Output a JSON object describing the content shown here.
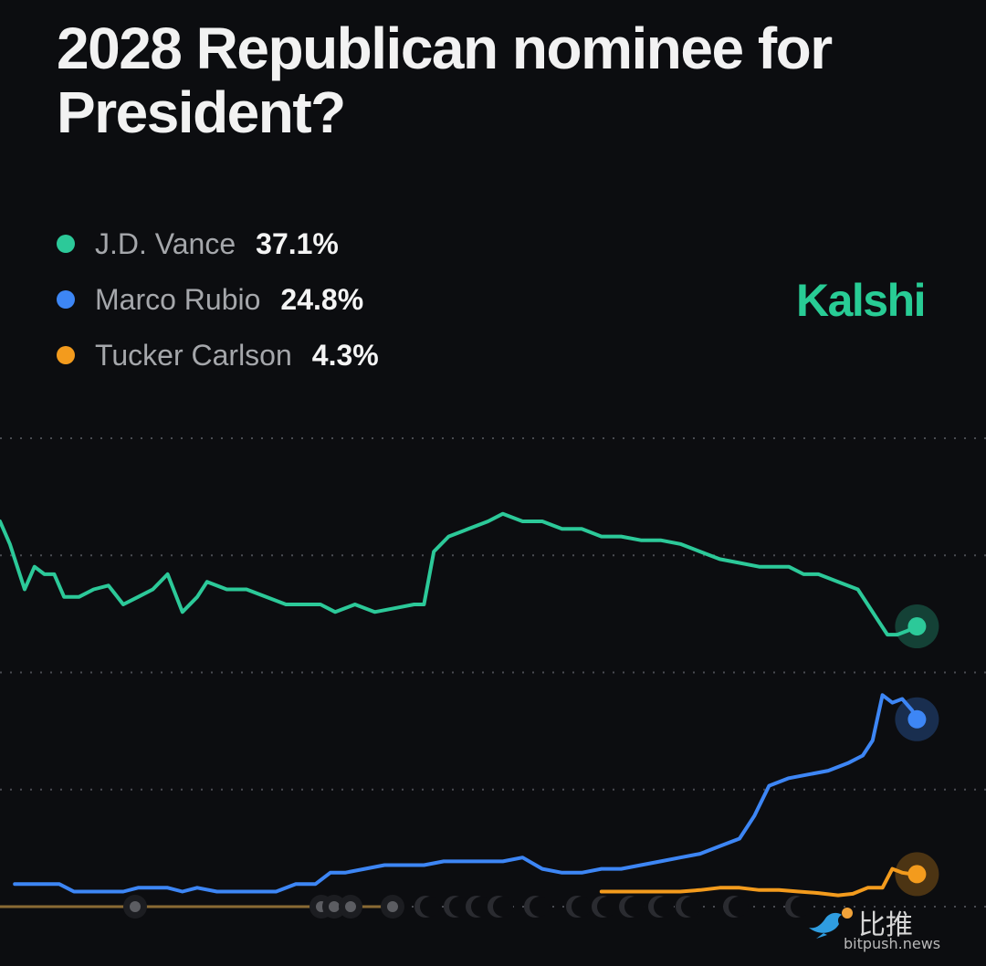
{
  "title": "2028 Republican nominee for President?",
  "brand": "Kalshi",
  "watermark": {
    "cn": "比推",
    "en": "bitpush.news",
    "icon": "bird-icon"
  },
  "legend": [
    {
      "name": "J.D. Vance",
      "value": "37.1%",
      "color": "#2cc999"
    },
    {
      "name": "Marco Rubio",
      "value": "24.8%",
      "color": "#3d86f5"
    },
    {
      "name": "Tucker Carlson",
      "value": "4.3%",
      "color": "#f39b1d"
    }
  ],
  "chart_data": {
    "type": "line",
    "ylim": [
      0,
      62
    ],
    "grid": true,
    "x_range": [
      0,
      100
    ],
    "series": [
      {
        "name": "J.D. Vance",
        "color": "#2cc999",
        "points": [
          [
            0,
            51
          ],
          [
            1,
            48
          ],
          [
            2.5,
            42
          ],
          [
            3.5,
            45
          ],
          [
            4.5,
            44
          ],
          [
            5.5,
            44
          ],
          [
            6.5,
            41
          ],
          [
            8,
            41
          ],
          [
            9.5,
            42
          ],
          [
            11,
            42.5
          ],
          [
            12.5,
            40
          ],
          [
            14,
            41
          ],
          [
            15.5,
            42
          ],
          [
            17,
            44
          ],
          [
            18.5,
            39
          ],
          [
            20,
            41
          ],
          [
            21,
            43
          ],
          [
            23,
            42
          ],
          [
            25,
            42
          ],
          [
            27,
            41
          ],
          [
            29,
            40
          ],
          [
            31,
            40
          ],
          [
            32.5,
            40
          ],
          [
            34,
            39
          ],
          [
            36,
            40
          ],
          [
            38,
            39
          ],
          [
            40,
            39.5
          ],
          [
            42,
            40
          ],
          [
            43,
            40
          ],
          [
            44,
            47
          ],
          [
            45.5,
            49
          ],
          [
            47.5,
            50
          ],
          [
            49.5,
            51
          ],
          [
            51,
            52
          ],
          [
            53,
            51
          ],
          [
            55,
            51
          ],
          [
            57,
            50
          ],
          [
            59,
            50
          ],
          [
            61,
            49
          ],
          [
            63,
            49
          ],
          [
            65,
            48.5
          ],
          [
            67,
            48.5
          ],
          [
            69,
            48
          ],
          [
            71,
            47
          ],
          [
            73,
            46
          ],
          [
            75,
            45.5
          ],
          [
            77,
            45
          ],
          [
            78.5,
            45
          ],
          [
            80,
            45
          ],
          [
            81.5,
            44
          ],
          [
            83,
            44
          ],
          [
            85,
            43
          ],
          [
            87,
            42
          ],
          [
            88,
            40
          ],
          [
            89,
            38
          ],
          [
            90,
            36
          ],
          [
            91,
            36
          ],
          [
            92,
            36.5
          ],
          [
            93,
            37.1
          ]
        ]
      },
      {
        "name": "Marco Rubio",
        "color": "#3d86f5",
        "points": [
          [
            1.5,
            3
          ],
          [
            3,
            3
          ],
          [
            4.5,
            3
          ],
          [
            6,
            3
          ],
          [
            7.5,
            2
          ],
          [
            9,
            2
          ],
          [
            11,
            2
          ],
          [
            12.5,
            2
          ],
          [
            14,
            2.5
          ],
          [
            15.5,
            2.5
          ],
          [
            17,
            2.5
          ],
          [
            18.5,
            2
          ],
          [
            20,
            2.5
          ],
          [
            22,
            2
          ],
          [
            24,
            2
          ],
          [
            26,
            2
          ],
          [
            28,
            2
          ],
          [
            30,
            3
          ],
          [
            32,
            3
          ],
          [
            33.5,
            4.5
          ],
          [
            35,
            4.5
          ],
          [
            37,
            5
          ],
          [
            39,
            5.5
          ],
          [
            41,
            5.5
          ],
          [
            43,
            5.5
          ],
          [
            45,
            6
          ],
          [
            47,
            6
          ],
          [
            49,
            6
          ],
          [
            51,
            6
          ],
          [
            53,
            6.5
          ],
          [
            55,
            5
          ],
          [
            57,
            4.5
          ],
          [
            59,
            4.5
          ],
          [
            61,
            5
          ],
          [
            63,
            5
          ],
          [
            65,
            5.5
          ],
          [
            67,
            6
          ],
          [
            69,
            6.5
          ],
          [
            71,
            7
          ],
          [
            73,
            8
          ],
          [
            75,
            9
          ],
          [
            76.5,
            12
          ],
          [
            78,
            16
          ],
          [
            80,
            17
          ],
          [
            82,
            17.5
          ],
          [
            84,
            18
          ],
          [
            86,
            19
          ],
          [
            87.5,
            20
          ],
          [
            88.5,
            22
          ],
          [
            89.5,
            28
          ],
          [
            90.5,
            27
          ],
          [
            91.5,
            27.5
          ],
          [
            92.5,
            26
          ],
          [
            93,
            24.8
          ]
        ]
      },
      {
        "name": "Tucker Carlson",
        "color": "#f39b1d",
        "points": [
          [
            61,
            2
          ],
          [
            63,
            2
          ],
          [
            65,
            2
          ],
          [
            67,
            2
          ],
          [
            69,
            2
          ],
          [
            71,
            2.2
          ],
          [
            73,
            2.5
          ],
          [
            75,
            2.5
          ],
          [
            77,
            2.2
          ],
          [
            79,
            2.2
          ],
          [
            81,
            2
          ],
          [
            83,
            1.8
          ],
          [
            85,
            1.5
          ],
          [
            86.5,
            1.7
          ],
          [
            88,
            2.5
          ],
          [
            89.5,
            2.5
          ],
          [
            90.5,
            5
          ],
          [
            91.5,
            4.5
          ],
          [
            92.5,
            4.3
          ],
          [
            93,
            4.3
          ]
        ]
      }
    ]
  }
}
